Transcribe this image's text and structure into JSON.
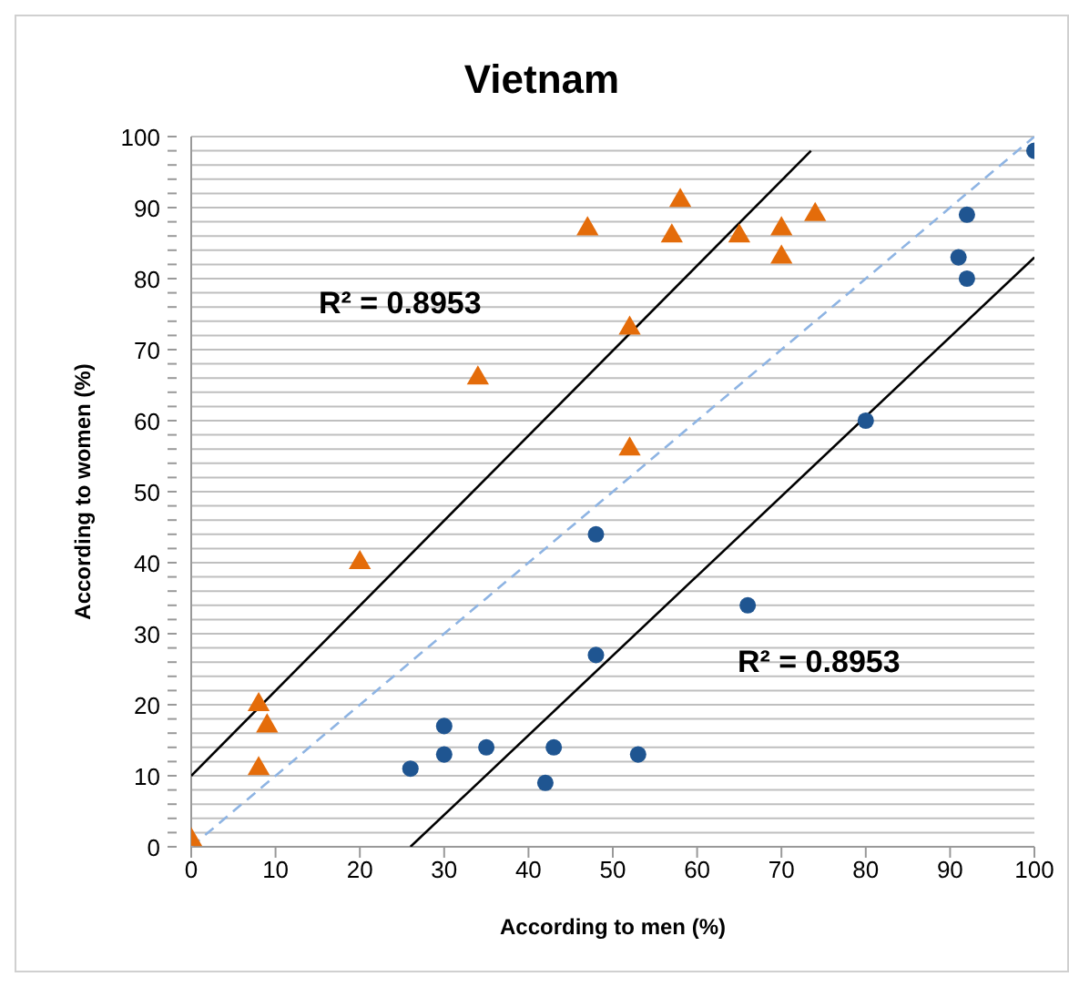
{
  "chart_data": {
    "type": "scatter",
    "title": "Vietnam",
    "xlabel": "According to men (%)",
    "ylabel": "According to women (%)",
    "xlim": [
      0,
      100
    ],
    "xticks": [
      0,
      10,
      20,
      30,
      40,
      50,
      60,
      70,
      80,
      90,
      100
    ],
    "ylim": [
      0,
      100
    ],
    "yticks": [
      0,
      {
        "value": 2,
        "label": null
      },
      {
        "value": 4,
        "label": null
      },
      {
        "value": 6,
        "label": null
      },
      {
        "value": 8,
        "label": null
      },
      10,
      {
        "value": 12,
        "label": null
      },
      {
        "value": 14,
        "label": null
      },
      {
        "value": 16,
        "label": null
      },
      {
        "value": 18,
        "label": null
      },
      20,
      {
        "value": 22,
        "label": null
      },
      {
        "value": 24,
        "label": null
      },
      {
        "value": 26,
        "label": null
      },
      {
        "value": 28,
        "label": null
      },
      30,
      {
        "value": 32,
        "label": null
      },
      {
        "value": 34,
        "label": null
      },
      {
        "value": 36,
        "label": null
      },
      {
        "value": 38,
        "label": null
      },
      40,
      {
        "value": 42,
        "label": null
      },
      {
        "value": 44,
        "label": null
      },
      {
        "value": 46,
        "label": null
      },
      {
        "value": 48,
        "label": null
      },
      50,
      {
        "value": 52,
        "label": null
      },
      {
        "value": 54,
        "label": null
      },
      {
        "value": 56,
        "label": null
      },
      {
        "value": 58,
        "label": null
      },
      60,
      {
        "value": 62,
        "label": null
      },
      {
        "value": 64,
        "label": null
      },
      {
        "value": 66,
        "label": null
      },
      {
        "value": 68,
        "label": null
      },
      70,
      {
        "value": 72,
        "label": null
      },
      {
        "value": 74,
        "label": null
      },
      {
        "value": 76,
        "label": null
      },
      {
        "value": 78,
        "label": null
      },
      80,
      {
        "value": 82,
        "label": null
      },
      {
        "value": 84,
        "label": null
      },
      {
        "value": 86,
        "label": null
      },
      {
        "value": 88,
        "label": null
      },
      90,
      {
        "value": 92,
        "label": null
      },
      {
        "value": 94,
        "label": null
      },
      {
        "value": 96,
        "label": null
      },
      {
        "value": 98,
        "label": null
      },
      100
    ],
    "grid": "y",
    "legend": false,
    "series": [
      {
        "type": "line",
        "color": "#8eb4e3",
        "line_style": "dashed",
        "marker": "none",
        "x": [
          0,
          100
        ],
        "values": [
          0,
          100
        ]
      },
      {
        "type": "line",
        "color": "#000000",
        "line_style": "solid",
        "marker": "none",
        "x": [
          0,
          73.5
        ],
        "values": [
          10,
          98
        ]
      },
      {
        "type": "line",
        "color": "#000000",
        "line_style": "solid",
        "marker": "none",
        "x": [
          26,
          100
        ],
        "values": [
          0,
          83
        ]
      },
      {
        "type": "scatter",
        "color": "#1f5591",
        "marker": "circle",
        "x": [
          26,
          30,
          30,
          35,
          42,
          43,
          48,
          48,
          53,
          66,
          80,
          91,
          92,
          92,
          100
        ],
        "values": [
          11,
          17,
          13,
          14,
          9,
          14,
          44,
          27,
          13,
          34,
          60,
          83,
          89,
          80,
          98
        ]
      },
      {
        "type": "scatter",
        "color": "#e46c0a",
        "marker": "triangle",
        "x": [
          0,
          8,
          9,
          8,
          20,
          34,
          47,
          52,
          52,
          57,
          58,
          65,
          70,
          70,
          74
        ],
        "values": [
          1,
          20,
          17,
          11,
          40,
          66,
          87,
          73,
          56,
          86,
          91,
          86,
          87,
          83,
          89
        ]
      }
    ],
    "annotations": [
      "R² = 0.8953",
      "R² = 0.8953"
    ]
  }
}
